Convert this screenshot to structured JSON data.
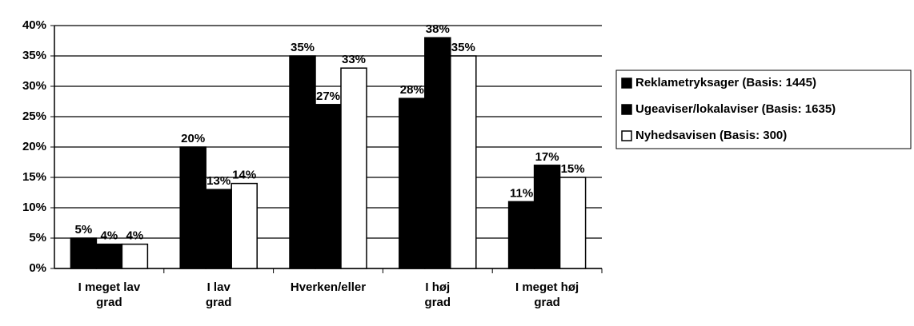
{
  "chart_data": {
    "type": "bar",
    "categories": [
      "I meget lav grad",
      "I lav grad",
      "Hverken/eller",
      "I høj grad",
      "I meget høj grad"
    ],
    "series": [
      {
        "name": "Reklametryksager (Basis: 1445)",
        "color": "#000000",
        "values": [
          5,
          20,
          35,
          28,
          11
        ],
        "value_labels": [
          "5%",
          "20%",
          "35%",
          "28%",
          "11%"
        ]
      },
      {
        "name": "Ugeaviser/lokalaviser (Basis: 1635)",
        "color": "#000000",
        "values": [
          4,
          13,
          27,
          38,
          17
        ],
        "value_labels": [
          "4%",
          "13%",
          "27%",
          "38%",
          "17%"
        ]
      },
      {
        "name": "Nyhedsavisen (Basis: 300)",
        "color": "#ffffff",
        "values": [
          4,
          14,
          33,
          35,
          15
        ],
        "value_labels": [
          "4%",
          "14%",
          "33%",
          "35%",
          "15%"
        ]
      }
    ],
    "ylim": [
      0,
      40
    ],
    "yticks": [
      {
        "value": 0,
        "label": "0%"
      },
      {
        "value": 5,
        "label": "5%"
      },
      {
        "value": 10,
        "label": "10%"
      },
      {
        "value": 15,
        "label": "15%"
      },
      {
        "value": 20,
        "label": "20%"
      },
      {
        "value": 25,
        "label": "25%"
      },
      {
        "value": 30,
        "label": "30%"
      },
      {
        "value": 35,
        "label": "35%"
      },
      {
        "value": 40,
        "label": "40%"
      }
    ],
    "grid": true,
    "legend": "right"
  }
}
